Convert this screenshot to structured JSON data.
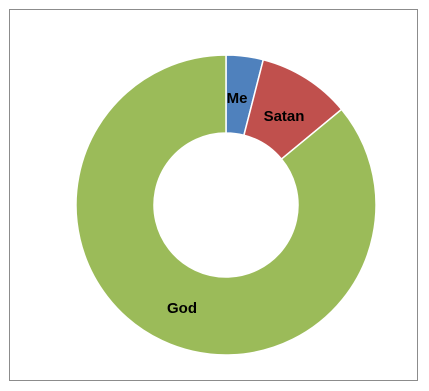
{
  "chart_data": {
    "type": "pie",
    "variant": "donut",
    "title": "",
    "slices": [
      {
        "label": "Me",
        "value": 4,
        "color": "#4f81bd"
      },
      {
        "label": "Satan",
        "value": 10,
        "color": "#c0504d"
      },
      {
        "label": "God",
        "value": 86,
        "color": "#9bbb59"
      }
    ],
    "legend": "none"
  }
}
